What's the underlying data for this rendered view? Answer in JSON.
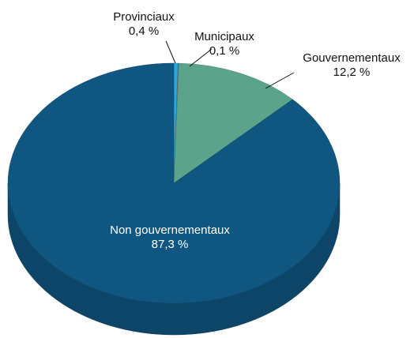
{
  "chart_data": {
    "type": "pie",
    "categories": [
      "Provinciaux",
      "Municipaux",
      "Gouvernementaux",
      "Non gouvernementaux"
    ],
    "values": [
      0.4,
      0.1,
      12.2,
      87.3
    ],
    "value_labels": [
      "0,4 %",
      "0,1 %",
      "12,2 %",
      "87,3 %"
    ],
    "colors": [
      "#2aa7df",
      "#6d6e71",
      "#5ba48b",
      "#0f5681"
    ]
  }
}
